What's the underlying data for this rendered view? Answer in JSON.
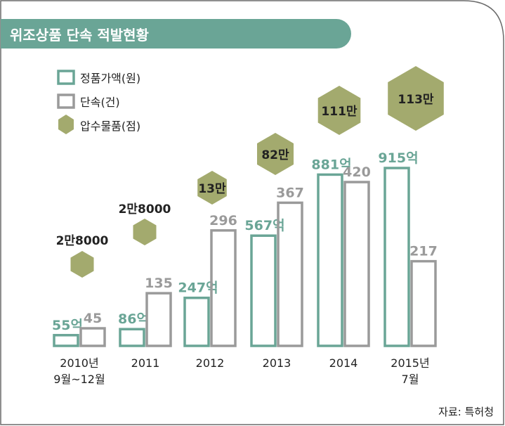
{
  "title": "위조상품 단속 적발현황",
  "source": "자료: 특허청",
  "colors": {
    "genuine": "#6aa596",
    "crackdown": "#9a9a9a",
    "seized": "#a3aa6e",
    "title_bg": "#6aa596"
  },
  "legend": [
    {
      "label": "정품가액(원)",
      "shape": "outline-rect",
      "color": "#6aa596"
    },
    {
      "label": "단속(건)",
      "shape": "outline-rect",
      "color": "#9a9a9a"
    },
    {
      "label": "압수물품(점)",
      "shape": "hexagon",
      "color": "#a3aa6e"
    }
  ],
  "chart_data": {
    "type": "bar",
    "title": "위조상품 단속 적발현황",
    "categories": [
      [
        "2010년",
        "9월~12월"
      ],
      [
        "2011"
      ],
      [
        "2012"
      ],
      [
        "2013"
      ],
      [
        "2014"
      ],
      [
        "2015년",
        "7월"
      ]
    ],
    "series": [
      {
        "name": "정품가액(원)",
        "values": [
          55,
          86,
          247,
          567,
          881,
          915
        ],
        "labels": [
          "55억",
          "86억",
          "247억",
          "567억",
          "881억",
          "915억"
        ]
      },
      {
        "name": "단속(건)",
        "values": [
          45,
          135,
          296,
          367,
          420,
          217
        ],
        "labels": [
          "45",
          "135",
          "296",
          "367",
          "420",
          "217"
        ]
      },
      {
        "name": "압수물품(점)",
        "values": [
          28000,
          28000,
          130000,
          820000,
          1110000,
          1130000
        ],
        "labels": [
          "2만8000",
          "2만8000",
          "13만",
          "82만",
          "111만",
          "113만"
        ]
      }
    ],
    "legend_position": "top-left",
    "grid": false
  }
}
